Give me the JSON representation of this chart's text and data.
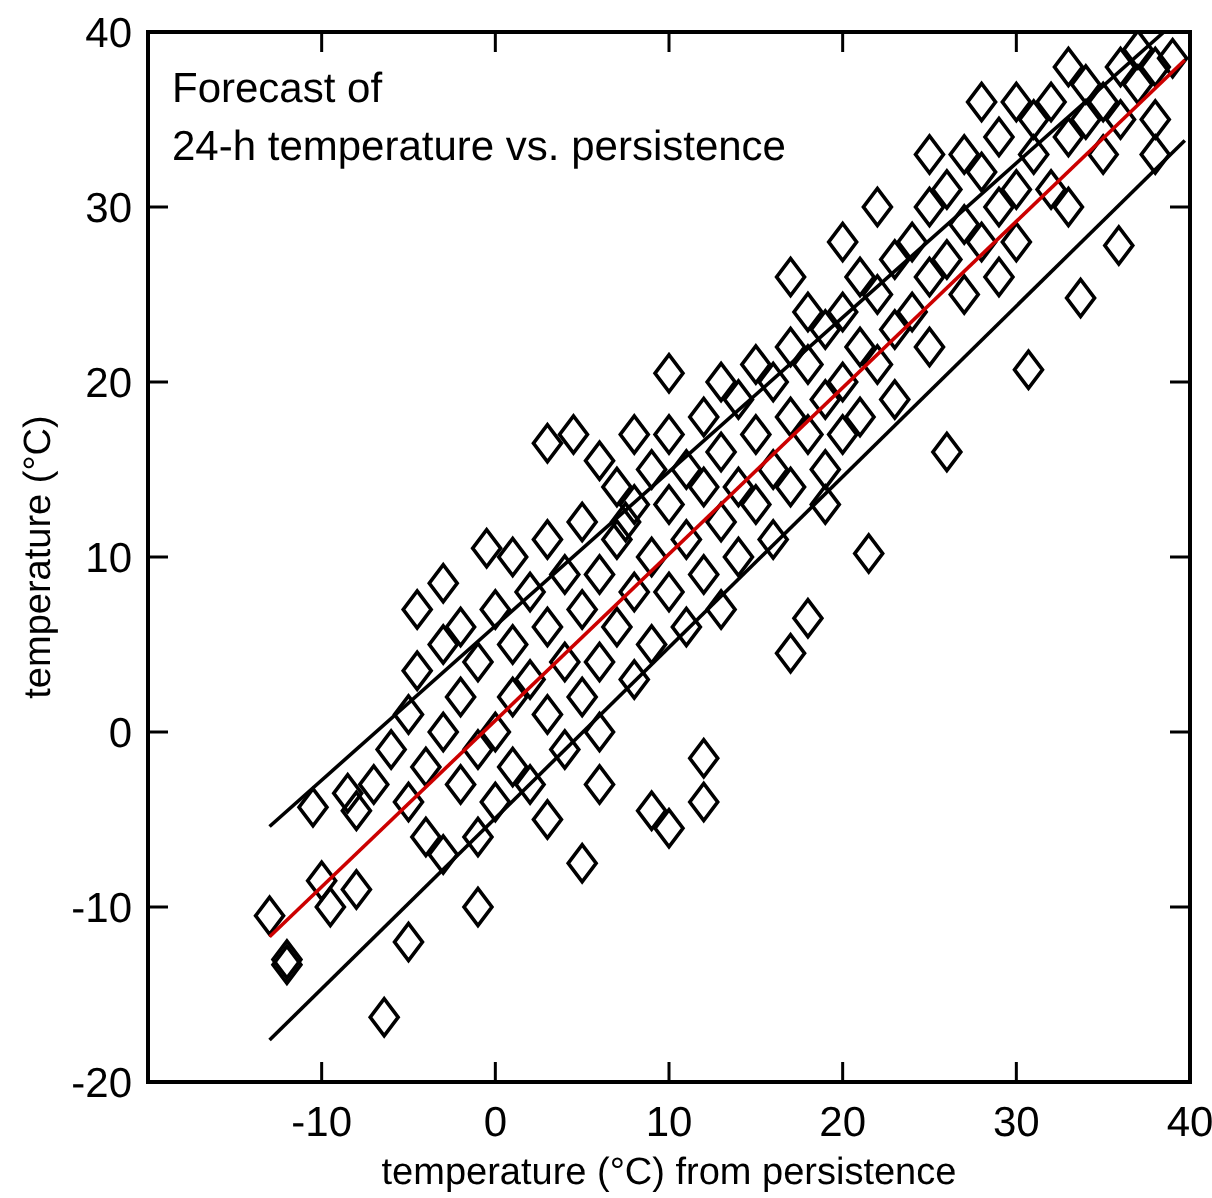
{
  "chart_data": {
    "type": "scatter",
    "title": "Forecast of\n24-h temperature vs. persistence",
    "xlabel": "temperature (°C) from persistence",
    "ylabel": "temperature (°C)",
    "xlim": [
      -20,
      40
    ],
    "ylim": [
      -20,
      40
    ],
    "xticks": [
      -10,
      0,
      10,
      20,
      30,
      40
    ],
    "yticks": [
      -20,
      -10,
      0,
      10,
      20,
      30,
      40
    ],
    "series": [
      {
        "marker": "diamond",
        "color": "#000000",
        "x": [
          -13,
          -12,
          -12,
          -10,
          -6.4,
          -5,
          -8,
          -10.5,
          -8.5,
          -9.5,
          -8,
          -1,
          3,
          5,
          6,
          9,
          12,
          10,
          12,
          17,
          18,
          -3,
          -4.5,
          -0.5,
          1,
          3,
          4.5,
          6,
          8,
          7.5,
          10,
          13,
          17,
          20,
          22,
          25,
          28,
          30,
          33,
          37,
          30.7,
          33.7,
          35.9,
          38,
          21.5,
          19,
          26,
          -7,
          -6,
          -5,
          -5,
          -4.5,
          -4,
          -4,
          -3,
          -3,
          -3,
          -2,
          -2,
          -2,
          -1,
          -1,
          -1,
          0,
          0,
          0,
          1,
          1,
          1,
          2,
          2,
          2,
          3,
          3,
          3,
          4,
          4,
          4,
          5,
          5,
          5,
          6,
          6,
          6,
          7,
          7,
          7,
          8,
          8,
          8,
          9,
          9,
          9,
          10,
          10,
          10,
          11,
          11,
          11,
          12,
          12,
          12,
          13,
          13,
          13,
          14,
          14,
          14,
          15,
          15,
          15,
          16,
          16,
          16,
          17,
          17,
          17,
          18,
          18,
          18,
          19,
          19,
          19,
          20,
          20,
          20,
          21,
          21,
          21,
          22,
          22,
          23,
          23,
          23,
          24,
          24,
          25,
          25,
          25,
          26,
          26,
          27,
          27,
          27,
          28,
          28,
          29,
          29,
          29,
          30,
          30,
          31,
          31,
          32,
          32,
          33,
          33,
          34,
          34,
          35,
          35,
          36,
          36,
          37,
          38,
          38,
          39
        ],
        "values": [
          -10.5,
          -13,
          -13.3,
          -8.5,
          -16.3,
          -12,
          -4.5,
          -4.3,
          -3.5,
          -10,
          -9,
          -10,
          -5,
          -7.5,
          -3,
          -4.5,
          -4,
          -5.5,
          -1.5,
          4.5,
          6.5,
          8.5,
          7,
          10.5,
          10,
          16.5,
          17,
          15.5,
          17,
          12,
          20.5,
          20,
          26,
          28,
          30,
          33,
          36,
          36,
          38,
          39,
          20.7,
          24.8,
          27.8,
          33,
          10.2,
          13,
          16,
          -3,
          -1,
          -4,
          1,
          3.5,
          -2,
          -6,
          0,
          5,
          -7,
          2,
          -3,
          6,
          -1,
          4,
          -6,
          0,
          7,
          -4,
          2,
          -2,
          5,
          8,
          -3,
          3,
          1,
          6,
          11,
          -1,
          4,
          9,
          2,
          7,
          12,
          4,
          9,
          0,
          6,
          11,
          14,
          3,
          8,
          13,
          10,
          5,
          15,
          8,
          13,
          17,
          11,
          6,
          15,
          14,
          9,
          18,
          12,
          16,
          7,
          14,
          19,
          10,
          13,
          17,
          21,
          15,
          20,
          11,
          18,
          22,
          14,
          17,
          21,
          24,
          19,
          15,
          23,
          20,
          24,
          17,
          22,
          26,
          18,
          21,
          25,
          23,
          27,
          19,
          24,
          28,
          26,
          22,
          30,
          27,
          31,
          25,
          29,
          33,
          28,
          32,
          30,
          34,
          26,
          31,
          28,
          33,
          35,
          31,
          36,
          34,
          30,
          35,
          37,
          33,
          36,
          35,
          38,
          37,
          38,
          35,
          38.5
        ]
      },
      {
        "type": "line",
        "color": "#000000",
        "x": [
          -13,
          38.5
        ],
        "values": [
          -5.4,
          40
        ]
      },
      {
        "type": "line",
        "color": "#cc0000",
        "x": [
          -13,
          39.7
        ],
        "values": [
          -11.7,
          38.4
        ]
      },
      {
        "type": "line",
        "color": "#000000",
        "x": [
          -13,
          39.7
        ],
        "values": [
          -17.6,
          33.8
        ]
      }
    ]
  }
}
